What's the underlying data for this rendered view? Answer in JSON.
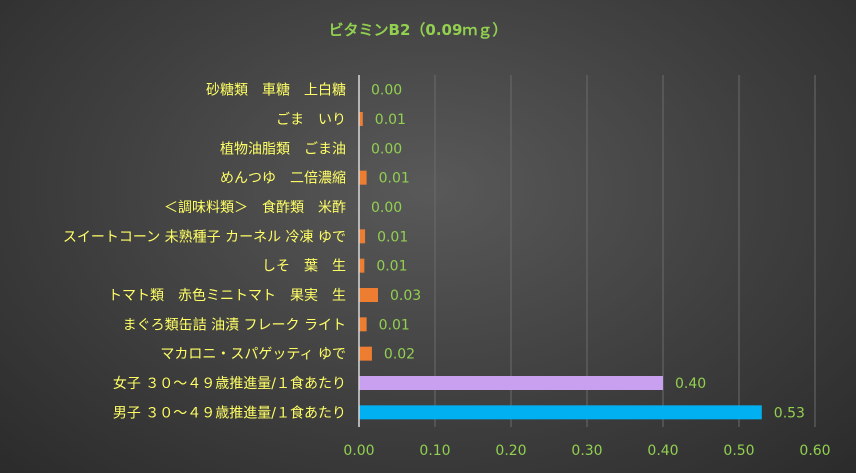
{
  "chart_data": {
    "type": "bar",
    "orientation": "horizontal",
    "title": "ビタミンB2（0.09ｍｇ）",
    "xlim": [
      0,
      0.6
    ],
    "x_ticks": [
      "0.00",
      "0.10",
      "0.20",
      "0.30",
      "0.40",
      "0.50",
      "0.60"
    ],
    "grid": true,
    "legend": "none",
    "categories": [
      "砂糖類　車糖　上白糖",
      "ごま　いり",
      "植物油脂類　ごま油",
      "めんつゆ　二倍濃縮",
      "＜調味料類＞　食酢類　米酢",
      "スイートコーン 未熟種子 カーネル 冷凍 ゆで",
      "しそ　葉　生",
      "トマト類　赤色ミニトマト　果実　生",
      "まぐろ類缶詰 油漬 フレーク ライト",
      "マカロニ・スパゲッティ ゆで",
      "女子 ３０～４９歳推進量/１食あたり",
      "男子 ３０～４９歳推進量/１食あたり"
    ],
    "values": [
      0.0,
      0.005,
      0.0,
      0.01,
      0.0,
      0.008,
      0.007,
      0.025,
      0.01,
      0.017,
      0.4,
      0.53
    ],
    "value_labels": [
      "0.00",
      "0.01",
      "0.00",
      "0.01",
      "0.00",
      "0.01",
      "0.01",
      "0.03",
      "0.01",
      "0.02",
      "0.40",
      "0.53"
    ],
    "colors": [
      "#ed7d31",
      "#ed7d31",
      "#ed7d31",
      "#ed7d31",
      "#ed7d31",
      "#ed7d31",
      "#ed7d31",
      "#ed7d31",
      "#ed7d31",
      "#ed7d31",
      "#c9a0f0",
      "#00b0f0"
    ]
  },
  "style": {
    "title_color": "#92d050",
    "category_color": "#ffff66",
    "value_color": "#92d050",
    "tick_color": "#92d050",
    "grid_color": "#6b6b6b",
    "axis_color": "#d9d9d9"
  }
}
